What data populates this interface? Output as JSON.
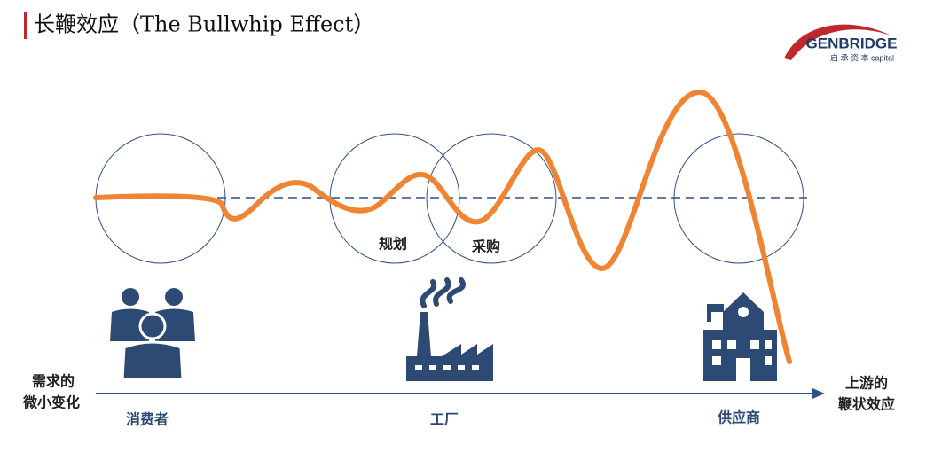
{
  "header": {
    "title": "长鞭效应（The Bullwhip Effect）"
  },
  "logo": {
    "name": "GENBRIDGE",
    "tagline": "启 承 资 本 capital"
  },
  "circles": [
    {
      "label": "规划"
    },
    {
      "label": "采购"
    }
  ],
  "nodes": [
    {
      "label": "消费者"
    },
    {
      "label": "工厂"
    },
    {
      "label": "供应商"
    }
  ],
  "axis": {
    "start_label": [
      "需求的",
      "微小变化"
    ],
    "end_label": [
      "上游的",
      "鞭状效应"
    ]
  }
}
